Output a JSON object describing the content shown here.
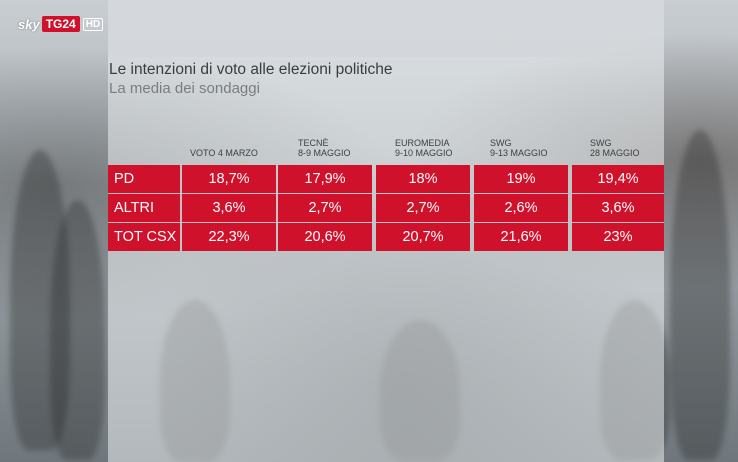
{
  "broadcaster": {
    "sky": "sky",
    "tg": "TG24",
    "hd": "HD"
  },
  "chart_data": {
    "type": "table",
    "title": "Le intenzioni di voto alle elezioni politiche",
    "subtitle": "La media dei sondaggi",
    "columns": [
      {
        "line1": "",
        "line2": "VOTO 4 MARZO"
      },
      {
        "line1": "TECNÈ",
        "line2": "8-9 MAGGIO"
      },
      {
        "line1": "EUROMEDIA",
        "line2": "9-10 MAGGIO"
      },
      {
        "line1": "SWG",
        "line2": "9-13 MAGGIO"
      },
      {
        "line1": "SWG",
        "line2": "28 MAGGIO"
      }
    ],
    "rows": [
      {
        "label": "PD",
        "values": [
          "18,7%",
          "17,9%",
          "18%",
          "19%",
          "19,4%"
        ]
      },
      {
        "label": "ALTRI",
        "values": [
          "3,6%",
          "2,7%",
          "2,7%",
          "2,6%",
          "3,6%"
        ]
      },
      {
        "label": "TOT CSX",
        "values": [
          "22,3%",
          "20,6%",
          "20,7%",
          "21,6%",
          "23%"
        ]
      }
    ],
    "colors": {
      "row_fill": "#d0112b",
      "text": "#ffffff"
    }
  }
}
